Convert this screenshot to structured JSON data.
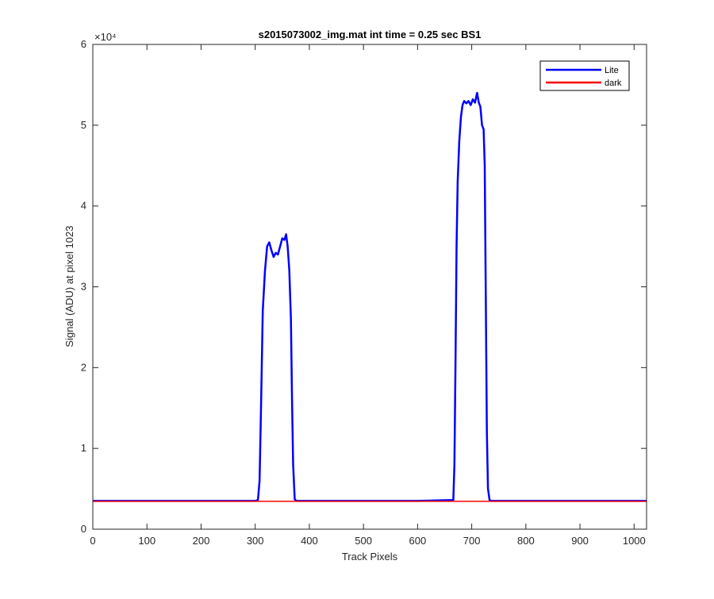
{
  "chart_data": {
    "type": "line",
    "title": "s2015073002_img.mat int time = 0.25 sec   BS1",
    "xlabel": "Track Pixels",
    "ylabel": "Signal (ADU) at pixel 1023",
    "y_exponent_label": "×10⁴",
    "xlim": [
      0,
      1023
    ],
    "ylim": [
      0,
      60000
    ],
    "xticks": [
      0,
      100,
      200,
      300,
      400,
      500,
      600,
      700,
      800,
      900,
      1000
    ],
    "xtick_labels": [
      "0",
      "100",
      "200",
      "300",
      "400",
      "500",
      "600",
      "700",
      "800",
      "900",
      "1000"
    ],
    "yticks": [
      0,
      10000,
      20000,
      30000,
      40000,
      50000,
      60000
    ],
    "ytick_labels": [
      "0",
      "1",
      "2",
      "3",
      "4",
      "5",
      "6"
    ],
    "grid": false,
    "legend_position": "top-right",
    "series": [
      {
        "name": "Lite",
        "color": "#0000ff",
        "x": [
          0,
          100,
          200,
          300,
          305,
          308,
          311,
          314,
          318,
          322,
          326,
          330,
          334,
          338,
          342,
          346,
          350,
          354,
          357,
          360,
          363,
          366,
          368,
          370,
          373,
          376,
          400,
          500,
          600,
          666,
          668,
          670,
          672,
          674,
          677,
          680,
          683,
          686,
          690,
          694,
          698,
          702,
          706,
          710,
          713,
          716,
          719,
          722,
          724,
          726,
          728,
          730,
          733,
          736,
          800,
          900,
          1023
        ],
        "y": [
          3500,
          3500,
          3500,
          3500,
          3600,
          6000,
          16000,
          27000,
          32000,
          35000,
          35500,
          34500,
          33700,
          34200,
          34000,
          35000,
          36000,
          35800,
          36500,
          35000,
          32000,
          26000,
          16000,
          8000,
          3700,
          3500,
          3500,
          3500,
          3500,
          3600,
          8000,
          20000,
          35000,
          43000,
          48000,
          51000,
          52500,
          53000,
          52700,
          53000,
          52500,
          53200,
          52800,
          54000,
          52800,
          52300,
          50000,
          49500,
          45000,
          28000,
          12000,
          5000,
          3600,
          3500,
          3500,
          3500,
          3500
        ]
      },
      {
        "name": "dark",
        "color": "#ff0000",
        "x": [
          0,
          1023
        ],
        "y": [
          3450,
          3450
        ]
      }
    ]
  }
}
